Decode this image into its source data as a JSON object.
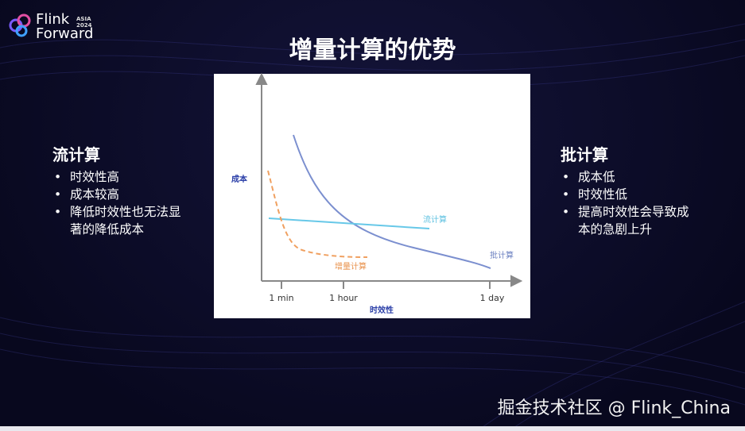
{
  "logo": {
    "line1": "Flink",
    "line2": "Forward",
    "badge_top": "ASIA",
    "badge_year": "2024"
  },
  "title": "增量计算的优势",
  "left": {
    "heading": "流计算",
    "bullets": [
      "时效性高",
      "成本较高",
      "降低时效性也无法显著的降低成本"
    ]
  },
  "figure": {
    "y_label": "成本",
    "x_label": "时效性",
    "x_ticks": [
      "1 min",
      "1 hour",
      "1 day"
    ],
    "curve_labels": [
      "流计算",
      "增量计算",
      "批计算"
    ]
  },
  "right": {
    "heading": "批计算",
    "bullets": [
      "成本低",
      "时效性低",
      "提高时效性会导致成本的急剧上升"
    ]
  },
  "watermark": "掘金技术社区 @ Flink_China"
}
